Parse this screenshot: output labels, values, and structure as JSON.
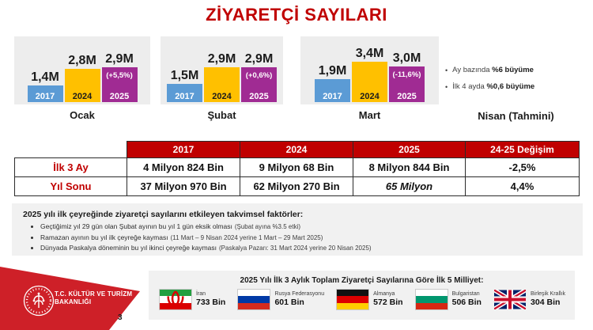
{
  "accent_red": "#C00000",
  "title": "ZİYARETÇİ SAYILARI",
  "page_number": "3",
  "ministry": {
    "line1": "T.C. KÜLTÜR VE TURİZM",
    "line2": "BAKANLIĞI"
  },
  "chart_data": {
    "type": "bar",
    "unit_label": "Kişi",
    "series_years": [
      "2017",
      "2024",
      "2025"
    ],
    "colors": {
      "y2017": "#5B9BD5",
      "y2024": "#FFC000",
      "y2025": "#A02B93"
    },
    "value_unit": "millions of visitors",
    "groups": [
      {
        "month": "Ocak",
        "bars": [
          {
            "year": "2017",
            "value": 1.4,
            "label": "1,4M"
          },
          {
            "year": "2024",
            "value": 2.8,
            "label": "2,8M"
          },
          {
            "year": "2025",
            "value": 2.9,
            "label": "2,9M",
            "change": "(+5,5%)"
          }
        ]
      },
      {
        "month": "Şubat",
        "bars": [
          {
            "year": "2017",
            "value": 1.5,
            "label": "1,5M"
          },
          {
            "year": "2024",
            "value": 2.9,
            "label": "2,9M"
          },
          {
            "year": "2025",
            "value": 2.9,
            "label": "2,9M",
            "change": "(+0,6%)"
          }
        ]
      },
      {
        "month": "Mart",
        "bars": [
          {
            "year": "2017",
            "value": 1.9,
            "label": "1,9M"
          },
          {
            "year": "2024",
            "value": 3.4,
            "label": "3,4M"
          },
          {
            "year": "2025",
            "value": 3.0,
            "label": "3,0M",
            "change": "(-11,6%)"
          }
        ]
      }
    ],
    "nisan": {
      "label": "Nisan (Tahmini)",
      "bullets": [
        {
          "pre": "Ay bazında ",
          "bold": "%6 büyüme"
        },
        {
          "pre": "İlk 4 ayda ",
          "bold": "%0,6 büyüme"
        }
      ]
    }
  },
  "table": {
    "col_headers": [
      "2017",
      "2024",
      "2025",
      "24-25 Değişim"
    ],
    "rows": [
      {
        "label": "İlk 3 Ay",
        "v2017": "4 Milyon 824 Bin",
        "v2024": "9 Milyon 68 Bin",
        "v2025": "8 Milyon 844 Bin",
        "change": "-2,5%"
      },
      {
        "label": "Yıl Sonu",
        "v2017": "37 Milyon 970 Bin",
        "v2024": "62 Milyon 270 Bin",
        "v2025": "65 Milyon",
        "change": "4,4%"
      }
    ]
  },
  "factors": {
    "title": "2025 yılı ilk çeyreğinde ziyaretçi sayılarını etkileyen takvimsel faktörler:",
    "bullets": [
      {
        "text": "Geçtiğimiz yıl 29 gün olan Şubat ayının bu yıl 1 gün eksik olması",
        "note": "(Şubat ayına %3.5 etki)"
      },
      {
        "text": "Ramazan ayının bu yıl ilk çeyreğe kayması",
        "note": "(11 Mart – 9 Nisan 2024 yerine 1 Mart – 29 Mart 2025)"
      },
      {
        "text": "Dünyada Paskalya döneminin bu yıl ikinci çeyreğe kayması",
        "note": "(Paskalya Pazarı: 31 Mart 2024 yerine 20 Nisan 2025)"
      }
    ]
  },
  "footer": {
    "title": "2025 Yılı İlk 3 Aylık Toplam Ziyaretçi Sayılarına Göre İlk 5 Milliyet:",
    "countries": [
      {
        "name": "İran",
        "value": "733 Bin",
        "flag": "iran-flag-icon"
      },
      {
        "name": "Rusya Federasyonu",
        "value": "601 Bin",
        "flag": "russia-flag-icon"
      },
      {
        "name": "Almanya",
        "value": "572 Bin",
        "flag": "germany-flag-icon"
      },
      {
        "name": "Bulgaristan",
        "value": "506 Bin",
        "flag": "bulgaria-flag-icon"
      },
      {
        "name": "Birleşik Krallık",
        "value": "304 Bin",
        "flag": "uk-flag-icon"
      }
    ]
  }
}
